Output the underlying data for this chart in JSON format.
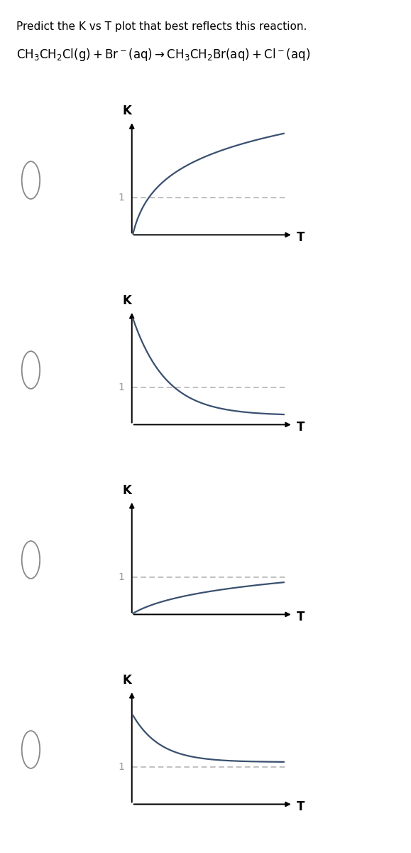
{
  "title_line1": "Predict the K vs T plot that best reflects this reaction.",
  "reaction_latex": "CH$_3$CH$_2$Cl(g) + Br$^-$(aq) → CH$_3$CH$_2$Br(aq) + Cl$^-$(aq)",
  "plots": [
    {
      "type": "increase_concave_down",
      "color": "#3a5070"
    },
    {
      "type": "decrease_from_high",
      "color": "#3a5070"
    },
    {
      "type": "slow_increase",
      "color": "#3a5070"
    },
    {
      "type": "decrease_to_near_one",
      "color": "#3a5070"
    }
  ],
  "axis_color": "#000000",
  "dashed_color": "#b0b0b0",
  "radio_color": "#888888",
  "background": "#ffffff",
  "text_color": "#000000",
  "curve_lw": 1.6,
  "axis_lw": 1.4,
  "title_fontsize": 11,
  "reaction_fontsize": 12,
  "label_fontsize": 12,
  "tick_fontsize": 10
}
